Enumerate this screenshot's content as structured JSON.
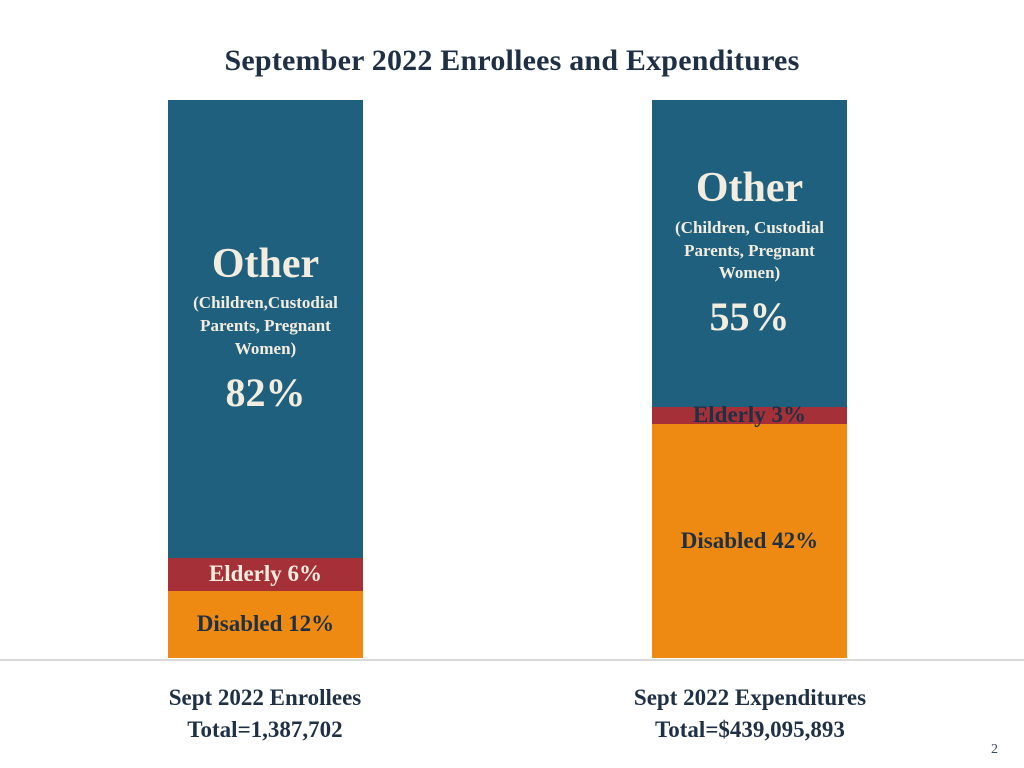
{
  "slide": {
    "page_number": "2"
  },
  "colors": {
    "other": "#20607f",
    "elderly": "#a63038",
    "disabled": "#ee8a12",
    "title_text": "#1f3044",
    "light_text": "#f2eddf",
    "dark_text": "#1f3044",
    "divider": "#d9d9d9"
  },
  "chart_data": {
    "type": "bar",
    "stacked": true,
    "unit": "percent",
    "title": "September 2022 Enrollees and Expenditures",
    "ylim": [
      0,
      100
    ],
    "grid": false,
    "legend": "none",
    "bars": [
      {
        "id": "enrollees",
        "caption": [
          "Sept 2022 Enrollees",
          "Total=1,387,702"
        ],
        "total_label": "Total=1,387,702",
        "segments": [
          {
            "name": "Other",
            "sub": "(Children,Custodial Parents, Pregnant Women)",
            "value": 82,
            "value_label": "82%",
            "color_key": "other",
            "text_style": "light"
          },
          {
            "name": "Elderly",
            "value": 6,
            "value_label": "Elderly 6%",
            "color_key": "elderly",
            "text_style": "light"
          },
          {
            "name": "Disabled",
            "value": 12,
            "value_label": "Disabled 12%",
            "color_key": "disabled",
            "text_style": "dark"
          }
        ]
      },
      {
        "id": "expenditures",
        "caption": [
          "Sept 2022 Expenditures",
          "Total=$439,095,893"
        ],
        "total_label": "Total=$439,095,893",
        "segments": [
          {
            "name": "Other",
            "sub": "(Children, Custodial Parents, Pregnant Women)",
            "value": 55,
            "value_label": "55%",
            "color_key": "other",
            "text_style": "light"
          },
          {
            "name": "Elderly",
            "value": 3,
            "value_label": "Elderly 3%",
            "color_key": "elderly",
            "text_style": "dark"
          },
          {
            "name": "Disabled",
            "value": 42,
            "value_label": "Disabled 42%",
            "color_key": "disabled",
            "text_style": "dark"
          }
        ]
      }
    ]
  }
}
